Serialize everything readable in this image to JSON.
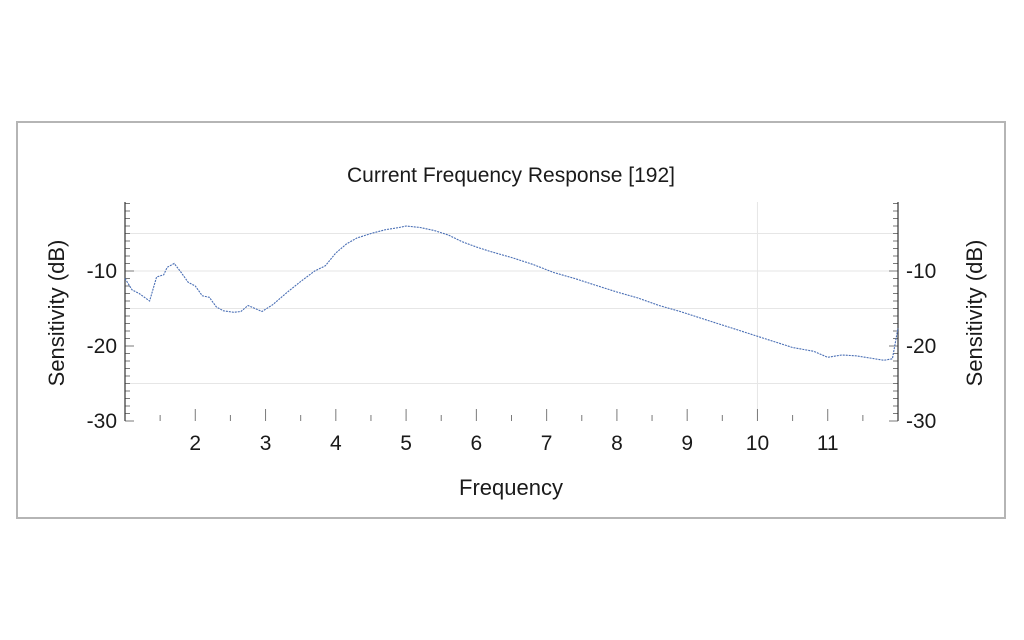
{
  "chart_data": {
    "type": "line",
    "title": "Current Frequency Response [192]",
    "xlabel": "Frequency",
    "ylabel_left": "Sensitivity (dB)",
    "ylabel_right": "Sensitivity (dB)",
    "xlim": [
      1.0,
      12.0
    ],
    "ylim": [
      -30,
      0
    ],
    "x_ticks": [
      2,
      3,
      4,
      5,
      6,
      7,
      8,
      9,
      10,
      11
    ],
    "y_ticks": [
      -30,
      -20,
      -10
    ],
    "grid": true,
    "h_gridlines": [
      -5,
      -10,
      -15,
      -25
    ],
    "v_gridlines": [
      10
    ],
    "line_color": "#4a6fb5",
    "series": [
      {
        "x": [
          1.0,
          1.1,
          1.2,
          1.35,
          1.45,
          1.55,
          1.6,
          1.7,
          1.8,
          1.9,
          2.0,
          2.1,
          2.2,
          2.3,
          2.4,
          2.55,
          2.65,
          2.75,
          2.85,
          2.95,
          3.1,
          3.3,
          3.5,
          3.7,
          3.85,
          4.0,
          4.15,
          4.3,
          4.5,
          4.7,
          4.9,
          5.0,
          5.2,
          5.4,
          5.6,
          5.8,
          6.0,
          6.2,
          6.5,
          6.8,
          7.1,
          7.4,
          7.7,
          8.0,
          8.3,
          8.6,
          8.9,
          9.1,
          9.4,
          9.7,
          10.0,
          10.3,
          10.5,
          10.8,
          11.0,
          11.2,
          11.4,
          11.6,
          11.8,
          11.92,
          12.0
        ],
        "y": [
          -11.0,
          -12.5,
          -13.0,
          -14.0,
          -10.8,
          -10.5,
          -9.5,
          -9.0,
          -10.2,
          -11.5,
          -12.0,
          -13.3,
          -13.5,
          -14.8,
          -15.3,
          -15.5,
          -15.4,
          -14.6,
          -15.0,
          -15.4,
          -14.5,
          -12.9,
          -11.4,
          -10.0,
          -9.3,
          -7.6,
          -6.4,
          -5.6,
          -5.0,
          -4.5,
          -4.2,
          -4.0,
          -4.2,
          -4.6,
          -5.2,
          -6.1,
          -6.8,
          -7.4,
          -8.2,
          -9.1,
          -10.2,
          -11.0,
          -11.9,
          -12.8,
          -13.6,
          -14.6,
          -15.4,
          -16.0,
          -16.9,
          -17.8,
          -18.7,
          -19.6,
          -20.2,
          -20.7,
          -21.5,
          -21.2,
          -21.3,
          -21.6,
          -21.9,
          -21.7,
          -17.6
        ]
      }
    ]
  }
}
